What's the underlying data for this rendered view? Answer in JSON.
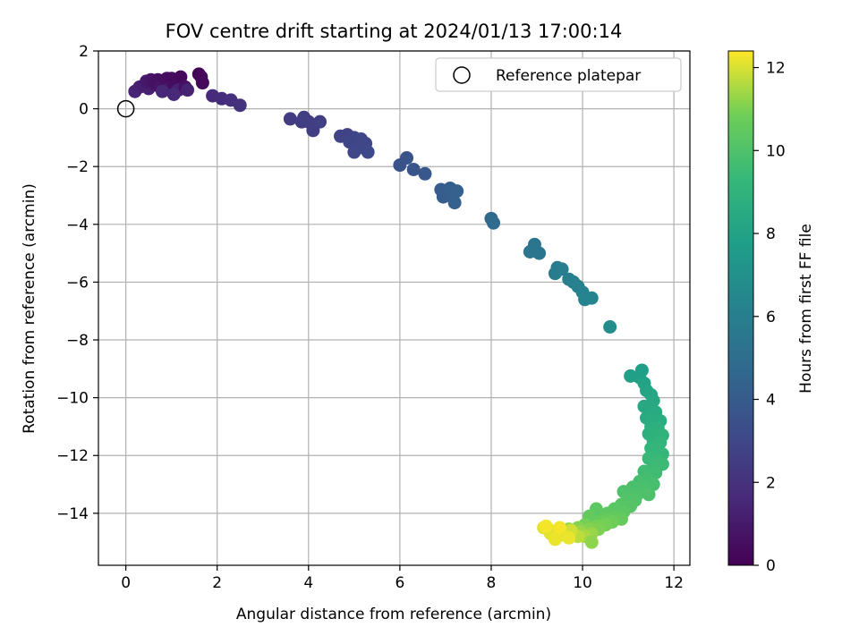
{
  "chart_data": {
    "type": "scatter",
    "title": "FOV centre drift starting at 2024/01/13 17:00:14",
    "xlabel": "Angular distance from reference (arcmin)",
    "ylabel": "Rotation from reference (arcmin)",
    "xlim": [
      -0.6,
      12.35
    ],
    "ylim": [
      -15.8,
      2.0
    ],
    "xticks": [
      0,
      2,
      4,
      6,
      8,
      10,
      12
    ],
    "yticks": [
      2,
      0,
      -2,
      -4,
      -6,
      -8,
      -10,
      -12,
      -14
    ],
    "grid": true,
    "legend": {
      "placement": "top-right",
      "entries": [
        "Reference platepar"
      ]
    },
    "reference_point": {
      "x": 0,
      "y": 0,
      "label": "Reference platepar"
    },
    "colorbar": {
      "label": "Hours from first FF file",
      "colormap": "viridis",
      "range": [
        0,
        12.4
      ],
      "ticks": [
        0,
        2,
        4,
        6,
        8,
        10,
        12
      ]
    },
    "points": [
      {
        "x": 0.2,
        "y": 0.6,
        "c": 1.4
      },
      {
        "x": 0.3,
        "y": 0.75,
        "c": 1.3
      },
      {
        "x": 0.4,
        "y": 0.8,
        "c": 1.2
      },
      {
        "x": 0.5,
        "y": 0.7,
        "c": 1.2
      },
      {
        "x": 0.45,
        "y": 0.95,
        "c": 0.9
      },
      {
        "x": 0.55,
        "y": 1.0,
        "c": 0.8
      },
      {
        "x": 0.65,
        "y": 0.85,
        "c": 0.7
      },
      {
        "x": 0.7,
        "y": 1.0,
        "c": 0.6
      },
      {
        "x": 0.75,
        "y": 0.75,
        "c": 0.8
      },
      {
        "x": 0.85,
        "y": 0.9,
        "c": 0.6
      },
      {
        "x": 0.9,
        "y": 1.05,
        "c": 0.5
      },
      {
        "x": 1.0,
        "y": 1.05,
        "c": 0.4
      },
      {
        "x": 0.95,
        "y": 0.7,
        "c": 1.0
      },
      {
        "x": 1.05,
        "y": 0.85,
        "c": 0.5
      },
      {
        "x": 1.1,
        "y": 1.0,
        "c": 0.4
      },
      {
        "x": 1.15,
        "y": 0.65,
        "c": 1.3
      },
      {
        "x": 1.2,
        "y": 1.1,
        "c": 0.3
      },
      {
        "x": 1.3,
        "y": 0.75,
        "c": 0.6
      },
      {
        "x": 1.35,
        "y": 0.65,
        "c": 1.3
      },
      {
        "x": 1.05,
        "y": 0.5,
        "c": 1.6
      },
      {
        "x": 1.6,
        "y": 1.2,
        "c": 0.1
      },
      {
        "x": 1.65,
        "y": 1.1,
        "c": 0.2
      },
      {
        "x": 1.68,
        "y": 0.9,
        "c": 0.3
      },
      {
        "x": 0.8,
        "y": 0.6,
        "c": 1.5
      },
      {
        "x": 1.9,
        "y": 0.45,
        "c": 1.7
      },
      {
        "x": 2.1,
        "y": 0.35,
        "c": 1.8
      },
      {
        "x": 2.3,
        "y": 0.3,
        "c": 1.9
      },
      {
        "x": 2.5,
        "y": 0.12,
        "c": 2.0
      },
      {
        "x": 3.6,
        "y": -0.35,
        "c": 2.5
      },
      {
        "x": 3.85,
        "y": -0.45,
        "c": 2.5
      },
      {
        "x": 3.9,
        "y": -0.3,
        "c": 2.6
      },
      {
        "x": 4.0,
        "y": -0.45,
        "c": 2.6
      },
      {
        "x": 4.1,
        "y": -0.75,
        "c": 2.6
      },
      {
        "x": 4.25,
        "y": -0.45,
        "c": 2.7
      },
      {
        "x": 4.7,
        "y": -0.95,
        "c": 2.8
      },
      {
        "x": 4.85,
        "y": -0.9,
        "c": 2.8
      },
      {
        "x": 4.9,
        "y": -1.15,
        "c": 2.9
      },
      {
        "x": 5.0,
        "y": -1.0,
        "c": 2.9
      },
      {
        "x": 5.05,
        "y": -1.3,
        "c": 2.9
      },
      {
        "x": 5.15,
        "y": -1.05,
        "c": 3.0
      },
      {
        "x": 5.2,
        "y": -1.35,
        "c": 3.0
      },
      {
        "x": 5.25,
        "y": -1.2,
        "c": 3.0
      },
      {
        "x": 5.3,
        "y": -1.5,
        "c": 3.1
      },
      {
        "x": 5.0,
        "y": -1.5,
        "c": 3.0
      },
      {
        "x": 6.0,
        "y": -1.95,
        "c": 3.6
      },
      {
        "x": 6.15,
        "y": -1.7,
        "c": 3.6
      },
      {
        "x": 6.3,
        "y": -2.1,
        "c": 3.7
      },
      {
        "x": 6.55,
        "y": -2.25,
        "c": 3.8
      },
      {
        "x": 6.9,
        "y": -2.8,
        "c": 4.1
      },
      {
        "x": 6.95,
        "y": -3.05,
        "c": 4.1
      },
      {
        "x": 7.1,
        "y": -2.75,
        "c": 4.2
      },
      {
        "x": 7.15,
        "y": -3.05,
        "c": 4.2
      },
      {
        "x": 7.2,
        "y": -3.25,
        "c": 4.3
      },
      {
        "x": 7.25,
        "y": -2.85,
        "c": 4.3
      },
      {
        "x": 8.0,
        "y": -3.8,
        "c": 4.7
      },
      {
        "x": 8.05,
        "y": -3.95,
        "c": 4.8
      },
      {
        "x": 8.85,
        "y": -4.95,
        "c": 5.4
      },
      {
        "x": 8.95,
        "y": -4.7,
        "c": 5.5
      },
      {
        "x": 9.05,
        "y": -5.0,
        "c": 5.5
      },
      {
        "x": 9.4,
        "y": -5.7,
        "c": 5.8
      },
      {
        "x": 9.45,
        "y": -5.5,
        "c": 5.8
      },
      {
        "x": 9.55,
        "y": -5.55,
        "c": 5.9
      },
      {
        "x": 9.7,
        "y": -5.9,
        "c": 6.0
      },
      {
        "x": 9.8,
        "y": -6.0,
        "c": 6.1
      },
      {
        "x": 9.9,
        "y": -6.15,
        "c": 6.1
      },
      {
        "x": 10.0,
        "y": -6.35,
        "c": 6.2
      },
      {
        "x": 10.05,
        "y": -6.6,
        "c": 6.3
      },
      {
        "x": 10.2,
        "y": -6.55,
        "c": 6.3
      },
      {
        "x": 10.6,
        "y": -7.55,
        "c": 6.8
      },
      {
        "x": 11.05,
        "y": -9.25,
        "c": 7.9
      },
      {
        "x": 11.3,
        "y": -9.05,
        "c": 7.8
      },
      {
        "x": 11.25,
        "y": -9.3,
        "c": 7.9
      },
      {
        "x": 11.35,
        "y": -9.5,
        "c": 8.0
      },
      {
        "x": 11.4,
        "y": -9.75,
        "c": 8.1
      },
      {
        "x": 11.5,
        "y": -9.9,
        "c": 8.2
      },
      {
        "x": 11.55,
        "y": -10.1,
        "c": 8.3
      },
      {
        "x": 11.35,
        "y": -10.3,
        "c": 8.3
      },
      {
        "x": 11.45,
        "y": -10.45,
        "c": 8.4
      },
      {
        "x": 11.6,
        "y": -10.5,
        "c": 8.5
      },
      {
        "x": 11.4,
        "y": -10.7,
        "c": 8.5
      },
      {
        "x": 11.55,
        "y": -10.75,
        "c": 8.6
      },
      {
        "x": 11.7,
        "y": -10.8,
        "c": 8.6
      },
      {
        "x": 11.5,
        "y": -11.0,
        "c": 8.7
      },
      {
        "x": 11.65,
        "y": -11.05,
        "c": 8.8
      },
      {
        "x": 11.45,
        "y": -11.25,
        "c": 8.8
      },
      {
        "x": 11.6,
        "y": -11.3,
        "c": 8.9
      },
      {
        "x": 11.75,
        "y": -11.3,
        "c": 9.0
      },
      {
        "x": 11.55,
        "y": -11.5,
        "c": 9.0
      },
      {
        "x": 11.7,
        "y": -11.55,
        "c": 9.1
      },
      {
        "x": 11.5,
        "y": -11.75,
        "c": 9.2
      },
      {
        "x": 11.65,
        "y": -11.8,
        "c": 9.2
      },
      {
        "x": 11.75,
        "y": -11.95,
        "c": 9.3
      },
      {
        "x": 11.55,
        "y": -12.0,
        "c": 9.3
      },
      {
        "x": 11.45,
        "y": -12.1,
        "c": 9.4
      },
      {
        "x": 11.65,
        "y": -12.2,
        "c": 9.4
      },
      {
        "x": 11.75,
        "y": -12.3,
        "c": 9.5
      },
      {
        "x": 11.55,
        "y": -12.4,
        "c": 9.5
      },
      {
        "x": 11.35,
        "y": -12.55,
        "c": 9.6
      },
      {
        "x": 11.6,
        "y": -12.6,
        "c": 9.6
      },
      {
        "x": 11.45,
        "y": -12.8,
        "c": 9.7
      },
      {
        "x": 11.25,
        "y": -12.9,
        "c": 9.8
      },
      {
        "x": 11.55,
        "y": -13.0,
        "c": 9.8
      },
      {
        "x": 11.1,
        "y": -13.1,
        "c": 9.9
      },
      {
        "x": 11.35,
        "y": -13.15,
        "c": 9.9
      },
      {
        "x": 10.9,
        "y": -13.25,
        "c": 10.0
      },
      {
        "x": 11.2,
        "y": -13.35,
        "c": 10.0
      },
      {
        "x": 11.45,
        "y": -13.35,
        "c": 10.0
      },
      {
        "x": 11.0,
        "y": -13.5,
        "c": 10.1
      },
      {
        "x": 11.15,
        "y": -13.55,
        "c": 10.1
      },
      {
        "x": 10.85,
        "y": -13.7,
        "c": 10.2
      },
      {
        "x": 11.05,
        "y": -13.75,
        "c": 10.2
      },
      {
        "x": 10.7,
        "y": -13.85,
        "c": 10.3
      },
      {
        "x": 10.9,
        "y": -13.95,
        "c": 10.3
      },
      {
        "x": 10.55,
        "y": -14.0,
        "c": 10.4
      },
      {
        "x": 10.75,
        "y": -14.1,
        "c": 10.5
      },
      {
        "x": 10.35,
        "y": -14.1,
        "c": 10.5
      },
      {
        "x": 10.6,
        "y": -14.2,
        "c": 10.6
      },
      {
        "x": 10.85,
        "y": -14.2,
        "c": 10.6
      },
      {
        "x": 10.2,
        "y": -14.25,
        "c": 10.7
      },
      {
        "x": 10.45,
        "y": -14.3,
        "c": 10.7
      },
      {
        "x": 10.65,
        "y": -14.3,
        "c": 10.8
      },
      {
        "x": 10.3,
        "y": -13.85,
        "c": 10.4
      },
      {
        "x": 10.15,
        "y": -14.1,
        "c": 10.6
      },
      {
        "x": 10.05,
        "y": -14.4,
        "c": 10.9
      },
      {
        "x": 10.3,
        "y": -14.45,
        "c": 10.9
      },
      {
        "x": 10.5,
        "y": -14.4,
        "c": 10.9
      },
      {
        "x": 9.9,
        "y": -14.5,
        "c": 11.1
      },
      {
        "x": 10.15,
        "y": -14.55,
        "c": 11.1
      },
      {
        "x": 10.35,
        "y": -14.55,
        "c": 11.0
      },
      {
        "x": 9.7,
        "y": -14.55,
        "c": 11.3
      },
      {
        "x": 9.95,
        "y": -14.65,
        "c": 11.3
      },
      {
        "x": 10.2,
        "y": -14.7,
        "c": 11.3
      },
      {
        "x": 9.55,
        "y": -14.6,
        "c": 11.5
      },
      {
        "x": 9.8,
        "y": -14.75,
        "c": 11.5
      },
      {
        "x": 10.05,
        "y": -14.8,
        "c": 11.5
      },
      {
        "x": 9.4,
        "y": -14.65,
        "c": 11.7
      },
      {
        "x": 9.65,
        "y": -14.7,
        "c": 11.7
      },
      {
        "x": 9.9,
        "y": -14.8,
        "c": 11.7
      },
      {
        "x": 9.25,
        "y": -14.55,
        "c": 11.9
      },
      {
        "x": 9.5,
        "y": -14.6,
        "c": 11.9
      },
      {
        "x": 9.75,
        "y": -14.6,
        "c": 11.9
      },
      {
        "x": 9.15,
        "y": -14.5,
        "c": 12.1
      },
      {
        "x": 9.3,
        "y": -14.7,
        "c": 12.1
      },
      {
        "x": 9.55,
        "y": -14.75,
        "c": 12.1
      },
      {
        "x": 9.4,
        "y": -14.9,
        "c": 12.2
      },
      {
        "x": 9.7,
        "y": -14.85,
        "c": 12.2
      },
      {
        "x": 9.2,
        "y": -14.45,
        "c": 12.3
      },
      {
        "x": 9.5,
        "y": -14.5,
        "c": 12.3
      },
      {
        "x": 10.2,
        "y": -15.0,
        "c": 11.2
      }
    ]
  }
}
